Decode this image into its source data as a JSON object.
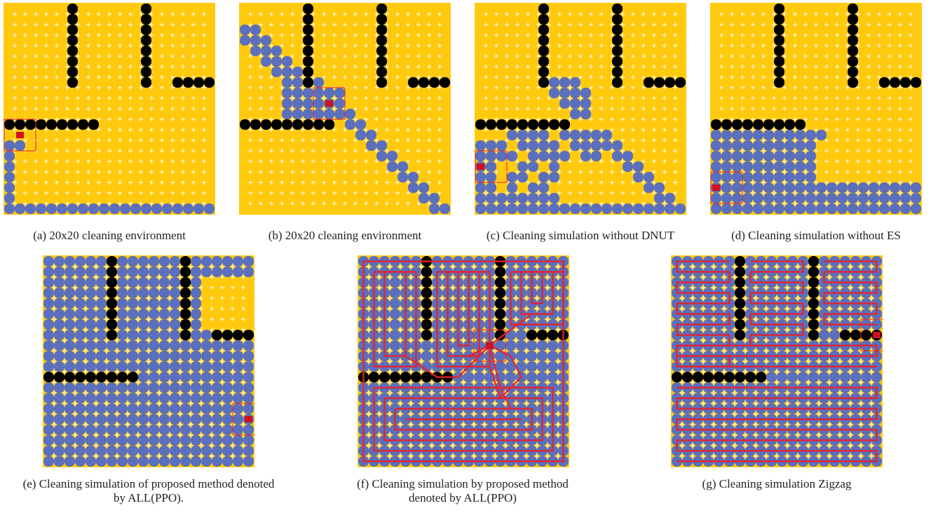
{
  "colors": {
    "uncleaned": "#FFC90E",
    "cleaned": "#5A6FBE",
    "obstacle": "#000000",
    "agent": "#D0101E",
    "path": "#E8202A",
    "sparkle": "#FFFFFF"
  },
  "grid_size": 20,
  "panels": [
    {
      "id": "a",
      "caption": [
        "(a) 20x20 cleaning environment"
      ],
      "state": "start",
      "agent_cell": [
        1,
        12
      ],
      "path": null
    },
    {
      "id": "b",
      "caption": [
        "(b) 20x20 cleaning environment"
      ],
      "state": "diagonal",
      "agent_cell": [
        8,
        9
      ],
      "path": null
    },
    {
      "id": "c",
      "caption": [
        "(c) Cleaning simulation without DNUT"
      ],
      "state": "partial_dnut",
      "agent_cell": [
        0,
        15
      ],
      "path": null
    },
    {
      "id": "d",
      "caption": [
        "(d) Cleaning simulation without ES"
      ],
      "state": "partial_es",
      "agent_cell": [
        0,
        17
      ],
      "path": null
    },
    {
      "id": "e",
      "caption": [
        "(e) Cleaning simulation of proposed method denoted",
        "by ALL(PPO)."
      ],
      "state": "almost_done",
      "agent_cell": [
        19,
        15
      ],
      "path": null
    },
    {
      "id": "f",
      "caption": [
        "(f) Cleaning simulation by proposed method",
        "denoted by ALL(PPO)"
      ],
      "state": "done",
      "agent_cell": [
        12,
        8
      ],
      "path": "spiral"
    },
    {
      "id": "g",
      "caption": [
        "(g) Cleaning simulation Zigzag"
      ],
      "state": "done",
      "agent_cell": [
        19,
        7
      ],
      "path": "zigzag"
    }
  ]
}
